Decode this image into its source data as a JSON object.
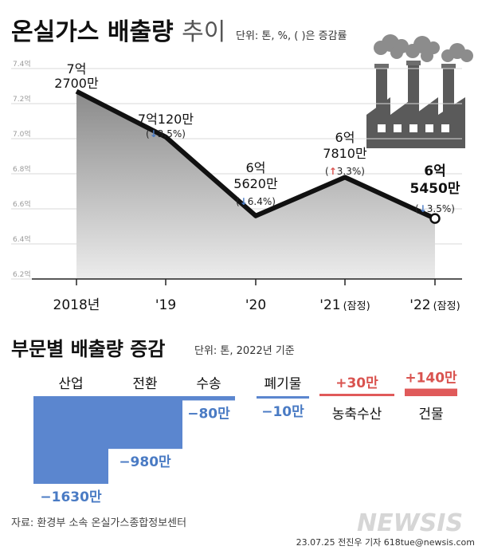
{
  "header": {
    "title": "온실가스 배출량",
    "title_suffix": "추이",
    "unit_note": "단위: 톤, %, ( )은 증감률"
  },
  "colors": {
    "line": "#111111",
    "area_top": "#8a8a8a",
    "area_bottom": "#ececec",
    "decrease": "#4a7bc4",
    "increase": "#d9534f",
    "bar_decrease": "#5b86cf",
    "bar_increase": "#e05a5a",
    "grid": "#d8d8d8"
  },
  "chart_data": [
    {
      "type": "area",
      "ylim": [
        6.2,
        7.4
      ],
      "yticks": [
        "6.2억",
        "6.4억",
        "6.6억",
        "6.8억",
        "7.0억",
        "7.2억",
        "7.4억"
      ],
      "ytick_values": [
        6.2,
        6.4,
        6.6,
        6.8,
        7.0,
        7.2,
        7.4
      ],
      "grid": true,
      "categories": [
        "2018년",
        "'19",
        "'20",
        "'21",
        "'22"
      ],
      "category_notes": [
        "",
        "",
        "",
        "(잠정)",
        "(잠정)"
      ],
      "values": [
        7.27,
        7.01,
        6.56,
        6.78,
        6.545
      ],
      "value_labels": [
        [
          "7억",
          "2700만"
        ],
        [
          "7억120만"
        ],
        [
          "6억",
          "5620만"
        ],
        [
          "6억",
          "7810만"
        ],
        [
          "6억",
          "5450만"
        ]
      ],
      "changes": [
        null,
        {
          "dir": "down",
          "arrow": "↓",
          "text": "3.5%)"
        },
        {
          "dir": "down",
          "arrow": "↓",
          "text": "6.4%)"
        },
        {
          "dir": "up",
          "arrow": "↑",
          "text": "3.3%)"
        },
        {
          "dir": "down",
          "arrow": "↓",
          "text": "3.5%)"
        }
      ]
    },
    {
      "type": "bar",
      "title": "부문별 배출량 증감",
      "unit": "단위: 톤, 2022년 기준",
      "categories": [
        "산업",
        "전환",
        "수송",
        "폐기물",
        "농축수산",
        "건물"
      ],
      "values": [
        -1630,
        -980,
        -80,
        -10,
        30,
        140
      ],
      "value_labels": [
        "−1630만",
        "−980만",
        "−80만",
        "−10만",
        "+30만",
        "+140만"
      ]
    }
  ],
  "footer": {
    "source": "자료: 환경부 소속 온실가스종합정보센터",
    "credit": "23.07.25 전진우 기자 618tue@newsis.com",
    "watermark": "NEWSIS"
  }
}
